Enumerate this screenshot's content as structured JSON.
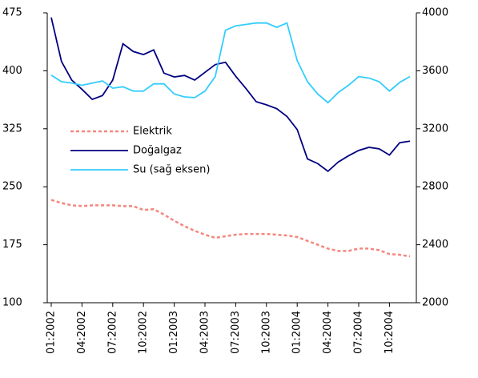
{
  "chart_data": {
    "type": "line",
    "categories": [
      "01:2002",
      null,
      null,
      "04:2002",
      null,
      null,
      "07:2002",
      null,
      null,
      "10:2002",
      null,
      null,
      "01:2003",
      null,
      null,
      "04:2003",
      null,
      null,
      "07:2003",
      null,
      null,
      "10:2003",
      null,
      null,
      "01:2004",
      null,
      null,
      "04:2004",
      null,
      null,
      "07:2004",
      null,
      null,
      "10:2004",
      null,
      null
    ],
    "series": [
      {
        "name": "Elektrik",
        "color": "#f4877f",
        "dash": true,
        "values": [
          233,
          229,
          226,
          225,
          226,
          226,
          226,
          225,
          225,
          220,
          221,
          214,
          206,
          199,
          193,
          188,
          184,
          186,
          188,
          189,
          189,
          189,
          188,
          187,
          185,
          180,
          175,
          170,
          167,
          167,
          170,
          170,
          168,
          163,
          162,
          160
        ]
      },
      {
        "name": "Doğalgaz",
        "color": "#000080",
        "values": [
          469,
          412,
          388,
          376,
          363,
          368,
          388,
          435,
          425,
          421,
          427,
          397,
          392,
          394,
          388,
          398,
          408,
          411,
          393,
          377,
          360,
          356,
          351,
          341,
          324,
          286,
          280,
          270,
          282,
          290,
          297,
          301,
          299,
          291,
          307,
          309
        ]
      },
      {
        "name": "Su (sağ eksen)",
        "color": "#33ccff",
        "axis": "y2",
        "values": [
          3570,
          3525,
          3515,
          3500,
          3515,
          3530,
          3480,
          3490,
          3460,
          3460,
          3510,
          3510,
          3440,
          3420,
          3415,
          3460,
          3560,
          3880,
          3910,
          3920,
          3930,
          3930,
          3900,
          3930,
          3670,
          3525,
          3440,
          3380,
          3450,
          3500,
          3560,
          3550,
          3525,
          3460,
          3520,
          3560
        ]
      }
    ],
    "ylim": [
      100,
      475
    ],
    "yticks": [
      100,
      175,
      250,
      325,
      400,
      475
    ],
    "y2lim": [
      2000,
      4000
    ],
    "y2ticks": [
      2000,
      2400,
      2800,
      3200,
      3600,
      4000
    ]
  }
}
